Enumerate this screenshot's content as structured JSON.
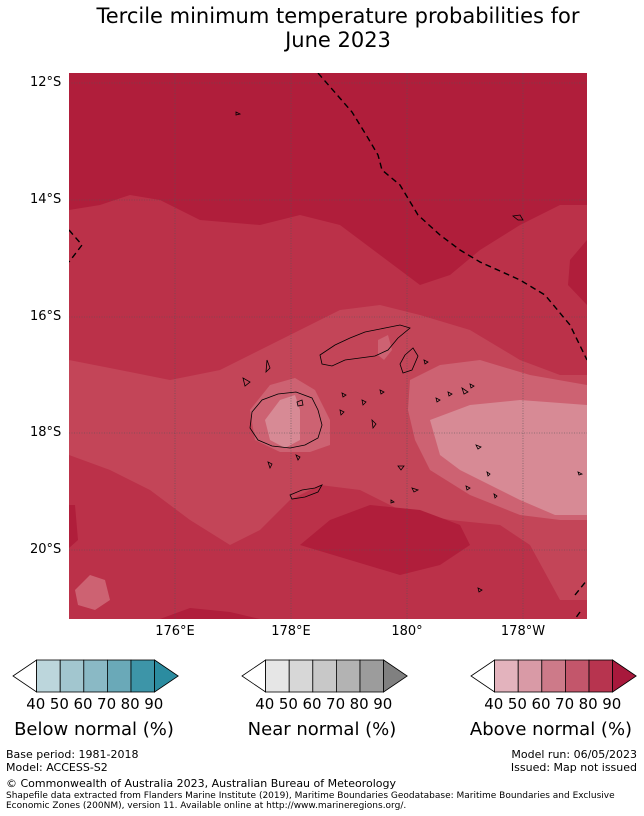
{
  "title_line1": "Tercile minimum temperature probabilities for",
  "title_line2": "June 2023",
  "lat_labels": [
    "12°S",
    "14°S",
    "16°S",
    "18°S",
    "20°S"
  ],
  "lon_labels": [
    "176°E",
    "178°E",
    "180°",
    "178°W"
  ],
  "legends": [
    {
      "label": "Below normal (%)",
      "ticks": [
        "40",
        "50",
        "60",
        "70",
        "80",
        "90"
      ],
      "colors": [
        "#ffffff",
        "#bcd6dc",
        "#a2c6cf",
        "#8ab9c5",
        "#6aa9b8",
        "#3d95a8"
      ]
    },
    {
      "label": "Near normal (%)",
      "ticks": [
        "40",
        "50",
        "60",
        "70",
        "80",
        "90"
      ],
      "colors": [
        "#ffffff",
        "#e6e6e6",
        "#d7d7d7",
        "#c8c8c8",
        "#b3b3b3",
        "#9c9c9c"
      ]
    },
    {
      "label": "Above normal (%)",
      "ticks": [
        "40",
        "50",
        "60",
        "70",
        "80",
        "90"
      ],
      "colors": [
        "#ffffff",
        "#e3b3bd",
        "#d99aa6",
        "#cd7a89",
        "#c3566b",
        "#b7344f"
      ]
    }
  ],
  "footer": {
    "base_period": "Base period: 1981-2018",
    "model": "Model: ACCESS-S2",
    "model_run": "Model run: 06/05/2023",
    "issued": "Issued: Map not issued",
    "copyright": "© Commonwealth of Australia 2023, Australian Bureau of Meteorology",
    "shapefile_line1": "Shapefile data extracted from Flanders Marine Institute (2019), Maritime Boundaries Geodatabase: Maritime Boundaries and Exclusive",
    "shapefile_line2": "Economic Zones (200NM), version 11. Available online at http://www.marineregions.org/."
  },
  "colors": {
    "above_90": "#b01e3b",
    "above_80": "#bb3149",
    "above_70": "#c34558",
    "above_60": "#cd6272",
    "above_50": "#d78a95",
    "ocean_border": "#000000"
  }
}
